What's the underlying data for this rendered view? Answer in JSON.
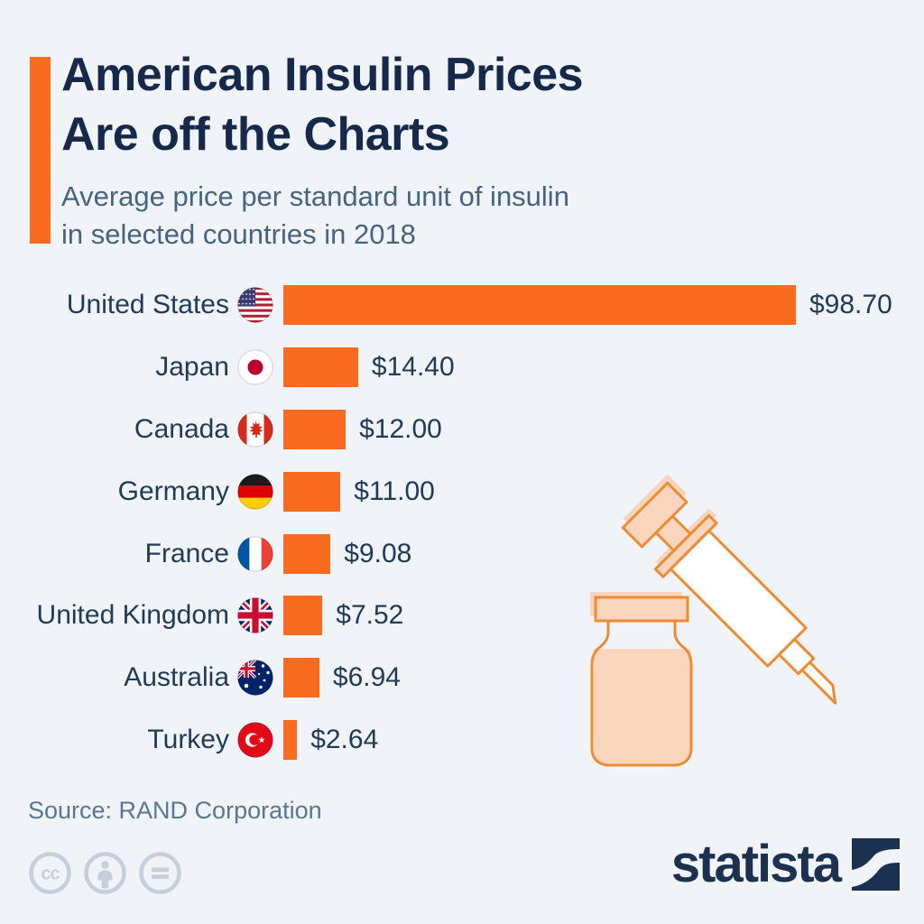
{
  "page": {
    "background": "#F0F4F8",
    "accent_color": "#F96B1E"
  },
  "header": {
    "title_line1": "American Insulin Prices",
    "title_line2": "Are off the Charts",
    "subtitle_line1": "Average price per standard unit of insulin",
    "subtitle_line2": "in selected countries in 2018"
  },
  "chart_data": {
    "type": "bar",
    "orientation": "horizontal",
    "title": "Average price per standard unit of insulin in selected countries in 2018",
    "unit": "USD per standard unit",
    "categories": [
      "United States",
      "Japan",
      "Canada",
      "Germany",
      "France",
      "United Kingdom",
      "Australia",
      "Turkey"
    ],
    "values": [
      98.7,
      14.4,
      12.0,
      11.0,
      9.08,
      7.52,
      6.94,
      2.64
    ],
    "value_labels": [
      "$98.70",
      "$14.40",
      "$12.00",
      "$11.00",
      "$9.08",
      "$7.52",
      "$6.94",
      "$2.64"
    ],
    "flags": [
      "us",
      "jp",
      "ca",
      "de",
      "fr",
      "gb",
      "au",
      "tr"
    ],
    "bar_color": "#F96B1E",
    "xlim": [
      0,
      98.7
    ],
    "grid": false,
    "legend": false
  },
  "footer": {
    "source": "Source: RAND Corporation",
    "license_icons": [
      "cc-icon",
      "attribution-icon",
      "no-derivatives-icon"
    ],
    "brand_text": "statista"
  }
}
